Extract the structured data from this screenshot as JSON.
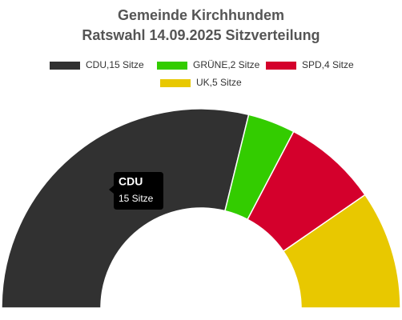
{
  "chart_data": {
    "type": "half-donut",
    "title": "Gemeinde Kirchhundem",
    "subtitle": "Ratswahl 14.09.2025 Sitzverteilung",
    "categories": [
      "CDU",
      "GRÜNE",
      "SPD",
      "UK"
    ],
    "values": [
      15,
      2,
      4,
      5
    ],
    "value_labels": [
      "15 Sitze",
      "2 Sitze",
      "4 Sitze",
      "5 Sitze"
    ],
    "legend_labels": [
      "CDU,15 Sitze",
      "GRÜNE,2 Sitze",
      "SPD,4 Sitze",
      "UK,5 Sitze"
    ],
    "colors": [
      "#313131",
      "#33cc00",
      "#d4002c",
      "#e8c800"
    ],
    "tooltip_index": 0
  }
}
